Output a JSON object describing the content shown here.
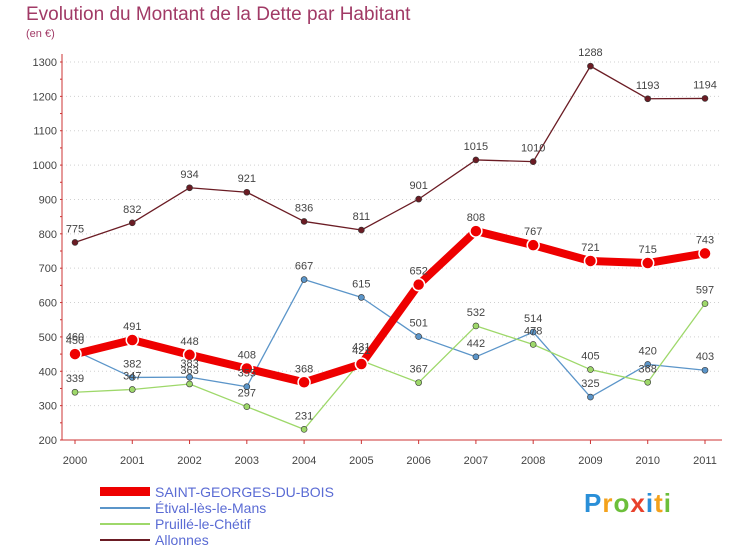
{
  "header": {
    "title": "Evolution du Montant de la Dette par Habitant",
    "subtitle": "(en €)"
  },
  "chart_data": {
    "type": "line",
    "title": "Evolution du Montant de la Dette par Habitant",
    "ylabel": "(en €)",
    "xlabel": "",
    "ylim": [
      200,
      1300
    ],
    "yticks": [
      200,
      300,
      400,
      500,
      600,
      700,
      800,
      900,
      1000,
      1100,
      1200,
      1300
    ],
    "x": [
      "2000",
      "2001",
      "2002",
      "2003",
      "2004",
      "2005",
      "2006",
      "2007",
      "2008",
      "2009",
      "2010",
      "2011"
    ],
    "grid": "horizontal dotted",
    "legend_position": "bottom-left",
    "series": [
      {
        "name": "SAINT-GEORGES-DU-BOIS",
        "color": "#ee0000",
        "values": [
          450,
          491,
          448,
          408,
          368,
          421,
          652,
          808,
          767,
          721,
          715,
          743
        ]
      },
      {
        "name": "Étival-lès-le-Mans",
        "color": "#5b95c9",
        "values": [
          460,
          382,
          383,
          355,
          667,
          615,
          501,
          442,
          514,
          325,
          420,
          403
        ]
      },
      {
        "name": "Pruillé-le-Chétif",
        "color": "#9ed86a",
        "values": [
          339,
          347,
          363,
          297,
          231,
          431,
          367,
          532,
          478,
          405,
          368,
          597
        ]
      },
      {
        "name": "Allonnes",
        "color": "#6b1c24",
        "values": [
          775,
          832,
          934,
          921,
          836,
          811,
          901,
          1015,
          1010,
          1288,
          1193,
          1194
        ]
      }
    ]
  },
  "logo": {
    "letters": [
      "P",
      "r",
      "o",
      "x",
      "i",
      "t",
      "i"
    ]
  }
}
